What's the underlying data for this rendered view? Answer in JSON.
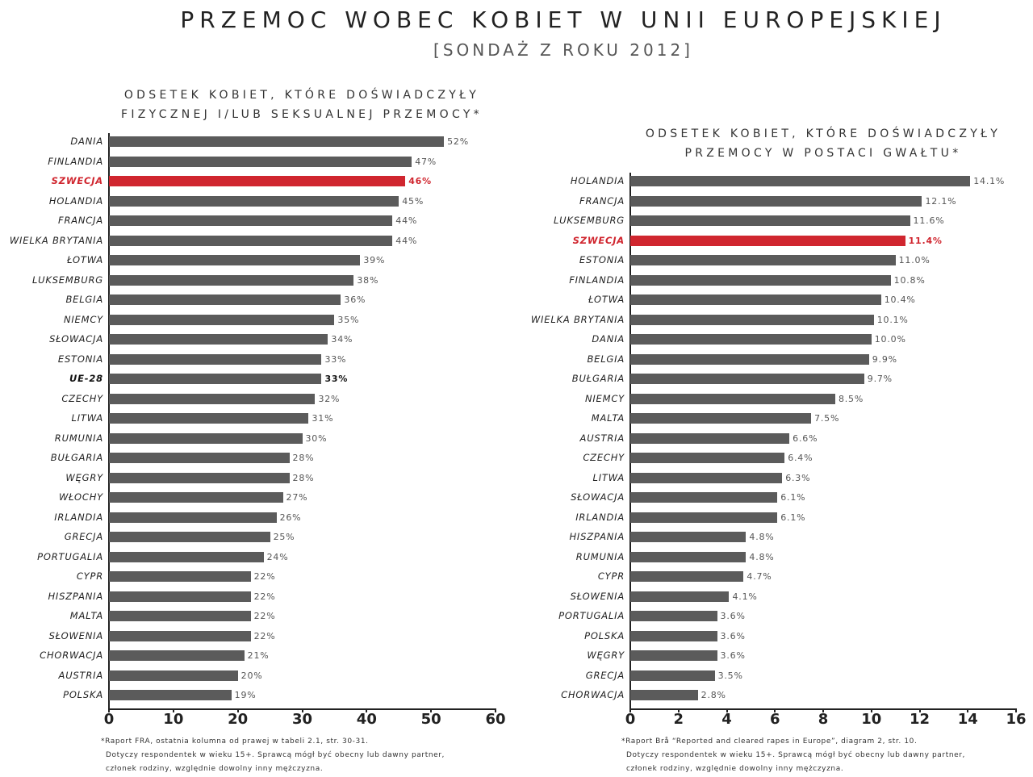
{
  "title": "PRZEMOC WOBEC KOBIET W UNII EUROPEJSKIEJ",
  "subtitle": "[SONDAŻ Z ROKU 2012]",
  "colors": {
    "bar": "#5b5b5b",
    "highlight": "#d0262f",
    "average": "#5b5b5b"
  },
  "chart_data": [
    {
      "type": "bar",
      "orientation": "horizontal",
      "title_lines": [
        "ODSETEK KOBIET, KTÓRE DOŚWIADCZYŁY",
        "FIZYCZNEJ I/LUB SEKSUALNEJ PRZEMOCY*"
      ],
      "xlim": [
        0,
        60
      ],
      "ticks": [
        "0",
        "10",
        "20",
        "30",
        "40",
        "50",
        "60"
      ],
      "unit": "%",
      "highlight": "SZWECJA",
      "emphasis": "UE-28",
      "categories": [
        "DANIA",
        "FINLANDIA",
        "SZWECJA",
        "HOLANDIA",
        "FRANCJA",
        "WIELKA BRYTANIA",
        "ŁOTWA",
        "LUKSEMBURG",
        "BELGIA",
        "NIEMCY",
        "SŁOWACJA",
        "ESTONIA",
        "UE-28",
        "CZECHY",
        "LITWA",
        "RUMUNIA",
        "BUŁGARIA",
        "WĘGRY",
        "WŁOCHY",
        "IRLANDIA",
        "GRECJA",
        "PORTUGALIA",
        "CYPR",
        "HISZPANIA",
        "MALTA",
        "SŁOWENIA",
        "CHORWACJA",
        "AUSTRIA",
        "POLSKA"
      ],
      "values": [
        52,
        47,
        46,
        45,
        44,
        44,
        39,
        38,
        36,
        35,
        34,
        33,
        33,
        32,
        31,
        30,
        28,
        28,
        27,
        26,
        25,
        24,
        22,
        22,
        22,
        22,
        21,
        20,
        19
      ],
      "labels": [
        "52%",
        "47%",
        "46%",
        "45%",
        "44%",
        "44%",
        "39%",
        "38%",
        "36%",
        "35%",
        "34%",
        "33%",
        "33%",
        "32%",
        "31%",
        "30%",
        "28%",
        "28%",
        "27%",
        "26%",
        "25%",
        "24%",
        "22%",
        "22%",
        "22%",
        "22%",
        "21%",
        "20%",
        "19%"
      ],
      "footnote": [
        "*Raport FRA, ostatnia kolumna od prawej w tabeli 2.1, str. 30-31.",
        "Dotyczy respondentek w wieku 15+. Sprawcą mógł być obecny lub dawny partner,",
        "członek rodziny, względnie dowolny inny mężczyzna."
      ]
    },
    {
      "type": "bar",
      "orientation": "horizontal",
      "title_lines": [
        "ODSETEK KOBIET, KTÓRE DOŚWIADCZYŁY",
        "PRZEMOCY W POSTACI GWAŁTU*"
      ],
      "xlim": [
        0,
        16
      ],
      "ticks": [
        "0",
        "2",
        "4",
        "6",
        "8",
        "10",
        "12",
        "14",
        "16"
      ],
      "unit": "%",
      "highlight": "SZWECJA",
      "categories": [
        "HOLANDIA",
        "FRANCJA",
        "LUKSEMBURG",
        "SZWECJA",
        "ESTONIA",
        "FINLANDIA",
        "ŁOTWA",
        "WIELKA BRYTANIA",
        "DANIA",
        "BELGIA",
        "BUŁGARIA",
        "NIEMCY",
        "MALTA",
        "AUSTRIA",
        "CZECHY",
        "LITWA",
        "SŁOWACJA",
        "IRLANDIA",
        "HISZPANIA",
        "RUMUNIA",
        "CYPR",
        "SŁOWENIA",
        "PORTUGALIA",
        "POLSKA",
        "WĘGRY",
        "GRECJA",
        "CHORWACJA"
      ],
      "values": [
        14.1,
        12.1,
        11.6,
        11.4,
        11.0,
        10.8,
        10.4,
        10.1,
        10.0,
        9.9,
        9.7,
        8.5,
        7.5,
        6.6,
        6.4,
        6.3,
        6.1,
        6.1,
        4.8,
        4.8,
        4.7,
        4.1,
        3.6,
        3.6,
        3.6,
        3.5,
        2.8
      ],
      "labels": [
        "14.1%",
        "12.1%",
        "11.6%",
        "11.4%",
        "11.0%",
        "10.8%",
        "10.4%",
        "10.1%",
        "10.0%",
        "9.9%",
        "9.7%",
        "8.5%",
        "7.5%",
        "6.6%",
        "6.4%",
        "6.3%",
        "6.1%",
        "6.1%",
        "4.8%",
        "4.8%",
        "4.7%",
        "4.1%",
        "3.6%",
        "3.6%",
        "3.6%",
        "3.5%",
        "2.8%"
      ],
      "footnote": [
        "*Raport Brå “Reported and cleared rapes in Europe”, diagram 2, str. 10.",
        "Dotyczy respondentek w wieku 15+. Sprawcą mógł być obecny lub dawny partner,",
        "członek rodziny, względnie dowolny inny mężczyzna."
      ]
    }
  ]
}
